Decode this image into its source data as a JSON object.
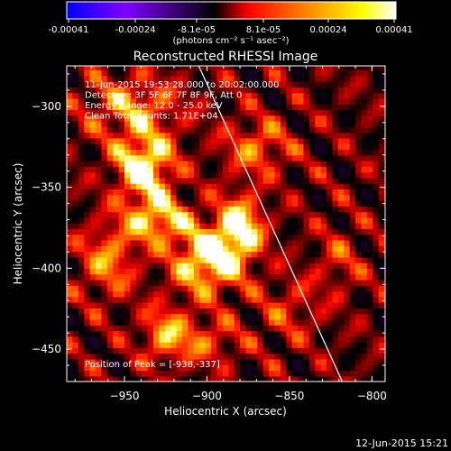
{
  "colorbar": {
    "ticks": [
      "-0.00041",
      "-0.00024",
      "-8.1e-05",
      "8.1e-05",
      "0.00024",
      "0.00041"
    ],
    "units": "(photons cm⁻² s⁻¹ asec⁻²)",
    "colors": [
      "#0000ff",
      "#7f00ff",
      "#000000",
      "#ff0000",
      "#ff8000",
      "#ffff00",
      "#ffffff"
    ]
  },
  "chart_data": {
    "type": "heatmap",
    "title": "Reconstructed RHESSI Image",
    "xlabel": "Heliocentric X (arcsec)",
    "ylabel": "Heliocentric Y (arcsec)",
    "xlim": [
      -985,
      -792
    ],
    "ylim": [
      -470,
      -275
    ],
    "xticks": [
      -950,
      -900,
      -850,
      -800
    ],
    "yticks": [
      -300,
      -350,
      -400,
      -450
    ],
    "info_lines": [
      "11-Jun-2015 19:53:28.000 to 20:02:00.000",
      "Detectors: 3F 5F 6F 7F 8F 9F, Att 0",
      "Energy Range: 12.0 - 25.0 keV",
      "Clean     Total counts: 1.71E+04"
    ],
    "peak_label": "Position of Peak = [-938,-337]",
    "peak": [
      -938,
      -337
    ],
    "limb_line": [
      [
        -905,
        -275
      ],
      [
        -818,
        -470
      ]
    ],
    "hotspots": [
      {
        "x": -938,
        "y": -337,
        "amp": 1.0,
        "sx": 12,
        "sy": 14
      },
      {
        "x": -900,
        "y": -395,
        "amp": 0.95,
        "sx": 14,
        "sy": 14
      },
      {
        "x": -880,
        "y": -375,
        "amp": 0.9,
        "sx": 10,
        "sy": 14
      },
      {
        "x": -930,
        "y": -370,
        "amp": 0.75,
        "sx": 14,
        "sy": 10
      },
      {
        "x": -945,
        "y": -300,
        "amp": 0.55,
        "sx": 20,
        "sy": 14
      },
      {
        "x": -960,
        "y": -395,
        "amp": 0.55,
        "sx": 12,
        "sy": 16
      },
      {
        "x": -870,
        "y": -325,
        "amp": 0.5,
        "sx": 14,
        "sy": 12
      },
      {
        "x": -925,
        "y": -440,
        "amp": 0.6,
        "sx": 10,
        "sy": 12
      },
      {
        "x": -900,
        "y": -445,
        "amp": 0.4,
        "sx": 14,
        "sy": 10
      },
      {
        "x": -850,
        "y": -425,
        "amp": 0.3,
        "sx": 14,
        "sy": 14
      },
      {
        "x": -820,
        "y": -395,
        "amp": 0.3,
        "sx": 10,
        "sy": 14
      }
    ]
  },
  "timestamp": "12-Jun-2015 15:21"
}
